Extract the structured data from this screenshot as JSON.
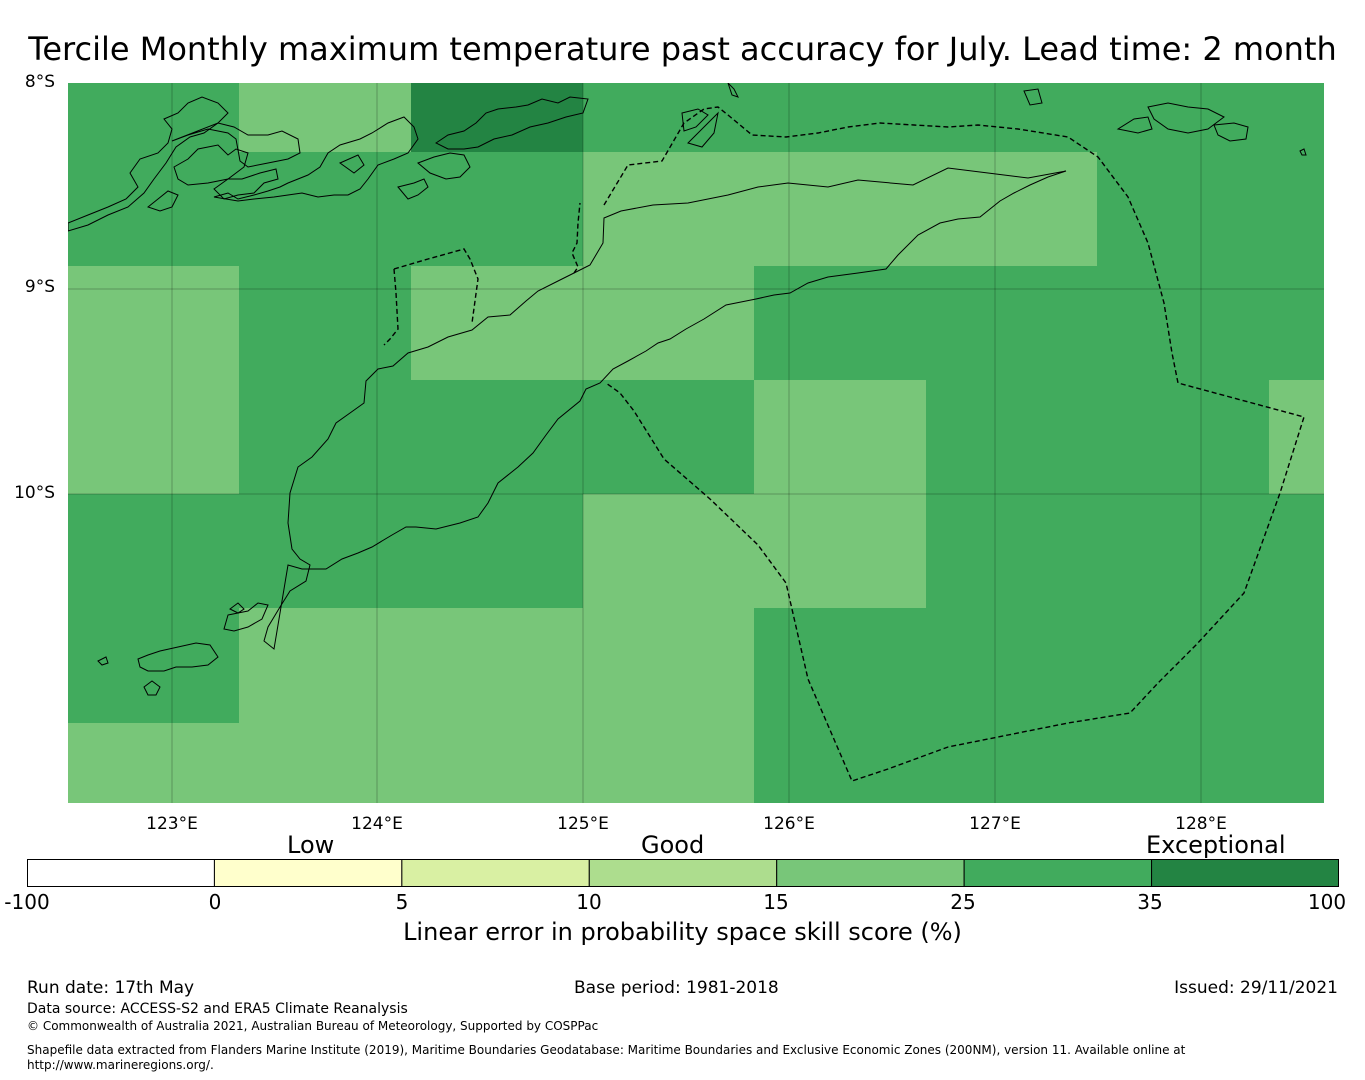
{
  "title": "Tercile Monthly maximum temperature past accuracy for July. Lead time: 2 month",
  "map": {
    "lat_labels": [
      "8°S",
      "9°S",
      "10°S"
    ],
    "lon_labels": [
      "123°E",
      "124°E",
      "125°E",
      "126°E",
      "127°E",
      "128°E"
    ],
    "cell_colors": {
      "c15_25": "#78c679",
      "c25_35": "#41ab5d",
      "c35_100": "#238443"
    },
    "grid": [
      [
        1,
        0,
        2,
        1,
        1,
        1,
        1,
        1
      ],
      [
        1,
        1,
        1,
        0,
        0,
        0,
        1,
        1
      ],
      [
        0,
        1,
        0,
        0,
        1,
        1,
        1,
        1
      ],
      [
        0,
        1,
        1,
        1,
        0,
        1,
        1,
        0
      ],
      [
        1,
        1,
        1,
        0,
        0,
        1,
        1,
        1
      ],
      [
        1,
        0,
        0,
        0,
        1,
        1,
        1,
        1
      ],
      [
        0,
        0,
        0,
        0,
        1,
        1,
        1,
        1
      ]
    ]
  },
  "colorbar": {
    "words": [
      "Low",
      "Good",
      "Exceptional"
    ],
    "ticks": [
      "-100",
      "0",
      "5",
      "10",
      "15",
      "25",
      "35",
      "100"
    ],
    "colors": [
      "#ffffff",
      "#ffffcc",
      "#d9f0a3",
      "#addd8e",
      "#78c679",
      "#41ab5d",
      "#238443"
    ],
    "label": "Linear error in probability space skill score (%)"
  },
  "footer": {
    "run_date": "Run date: 17th May",
    "base_period": "Base period: 1981-2018",
    "issued": "Issued: 29/11/2021",
    "data_source": "Data source: ACCESS-S2 and ERA5 Climate Reanalysis",
    "copyright": "© Commonwealth of Australia 2021, Australian Bureau of Meteorology, Supported by COSPPac",
    "shapefile_1": "Shapefile data extracted from Flanders Marine Institute (2019), Maritime Boundaries Geodatabase: Maritime Boundaries and Exclusive Economic Zones (200NM), version 11. Available online at",
    "shapefile_2": "http://www.marineregions.org/."
  }
}
